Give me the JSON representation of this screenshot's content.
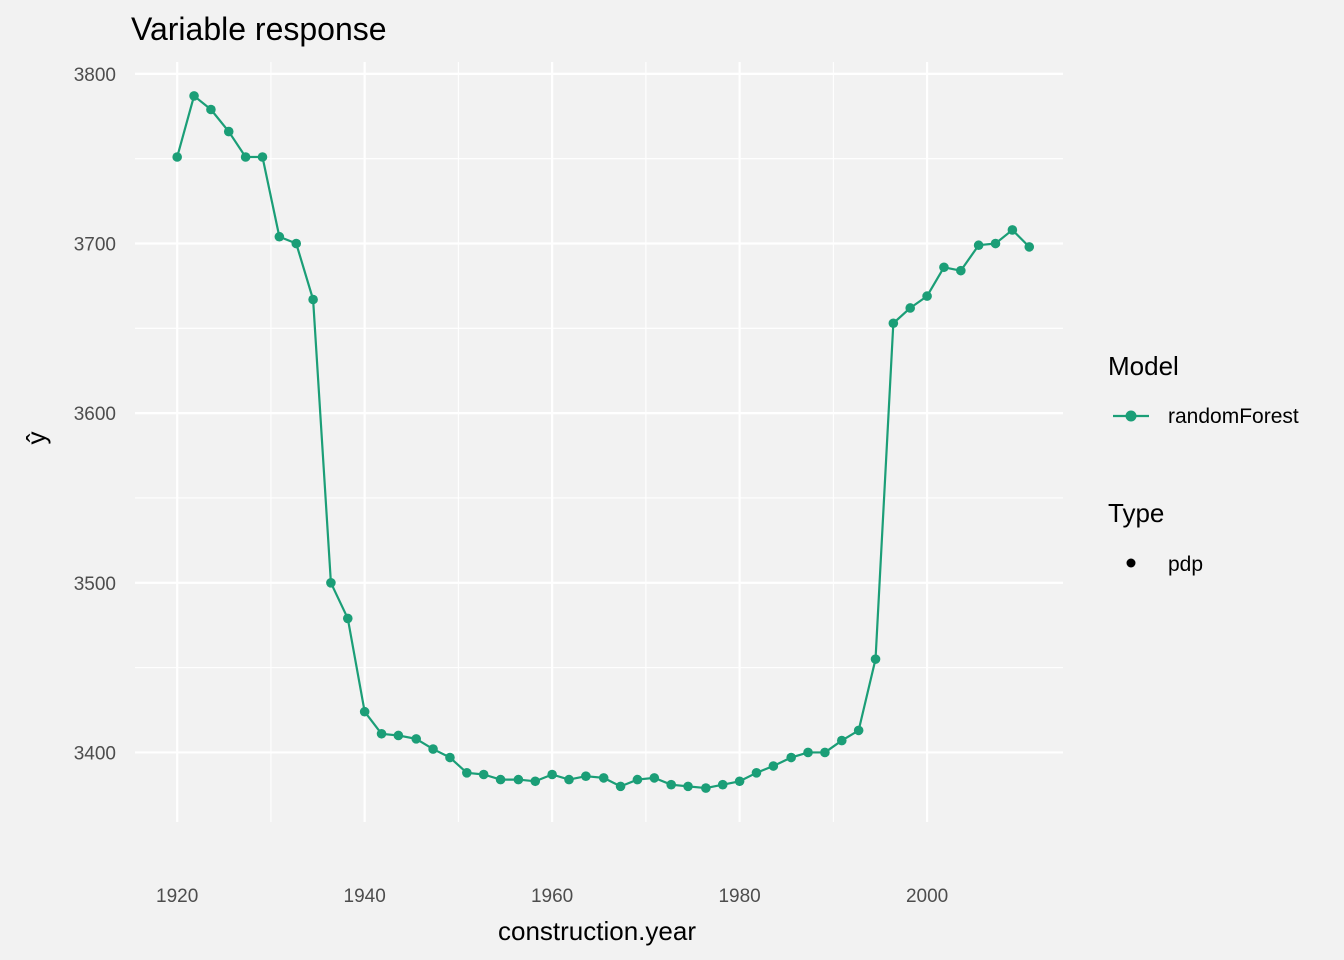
{
  "chart_data": {
    "type": "line",
    "title": "Variable response",
    "xlabel": "construction.year",
    "ylabel": "ŷ",
    "xlim": [
      1915.5,
      2014.5
    ],
    "ylim": [
      3359,
      3807
    ],
    "x_ticks": [
      1920,
      1940,
      1960,
      1980,
      2000
    ],
    "y_ticks": [
      3400,
      3500,
      3600,
      3700,
      3800
    ],
    "grid": true,
    "legend_position": "right",
    "colors": {
      "series": "#1b9e77",
      "background": "#f2f2f2",
      "grid": "#ffffff"
    },
    "legend": {
      "groups": [
        {
          "title": "Model",
          "items": [
            {
              "label": "randomForest",
              "symbol": "line-point",
              "color": "#1b9e77"
            }
          ]
        },
        {
          "title": "Type",
          "items": [
            {
              "label": "pdp",
              "symbol": "point",
              "color": "#000000"
            }
          ]
        }
      ]
    },
    "series": [
      {
        "name": "randomForest",
        "x": [
          1920,
          1921.8,
          1923.6,
          1925.5,
          1927.3,
          1929.1,
          1930.9,
          1932.7,
          1934.5,
          1936.4,
          1938.2,
          1940,
          1941.8,
          1943.6,
          1945.5,
          1947.3,
          1949.1,
          1950.9,
          1952.7,
          1954.5,
          1956.4,
          1958.2,
          1960,
          1961.8,
          1963.6,
          1965.5,
          1967.3,
          1969.1,
          1970.9,
          1972.7,
          1974.5,
          1976.4,
          1978.2,
          1980,
          1981.8,
          1983.6,
          1985.5,
          1987.3,
          1989.1,
          1990.9,
          1992.7,
          1994.5,
          1996.4,
          1998.2,
          2000,
          2001.8,
          2003.6,
          2005.5,
          2007.3,
          2009.1,
          2010.9
        ],
        "y": [
          3751,
          3787,
          3779,
          3766,
          3751,
          3751,
          3704,
          3700,
          3667,
          3500,
          3479,
          3424,
          3411,
          3410,
          3408,
          3402,
          3397,
          3388,
          3387,
          3384,
          3384,
          3383,
          3387,
          3384,
          3386,
          3385,
          3380,
          3384,
          3385,
          3381,
          3380,
          3379,
          3381,
          3383,
          3388,
          3392,
          3397,
          3400,
          3400,
          3407,
          3413,
          3455,
          3653,
          3662,
          3669,
          3686,
          3684,
          3699,
          3700,
          3708,
          3698
        ]
      }
    ]
  }
}
